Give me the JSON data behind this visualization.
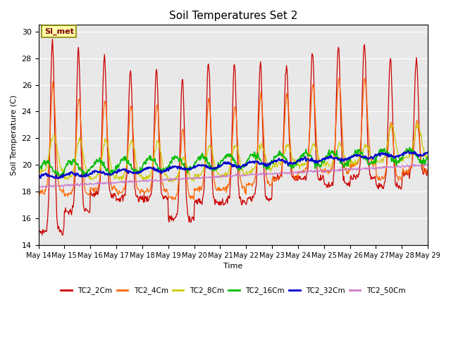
{
  "title": "Soil Temperatures Set 2",
  "xlabel": "Time",
  "ylabel": "Soil Temperature (C)",
  "ylim": [
    14,
    30.5
  ],
  "yticks": [
    14,
    16,
    18,
    20,
    22,
    24,
    26,
    28,
    30
  ],
  "bg_color": "#e8e8e8",
  "series_colors": {
    "TC2_2Cm": "#cc0000",
    "TC2_4Cm": "#ff6600",
    "TC2_8Cm": "#cccc00",
    "TC2_16Cm": "#00bb00",
    "TC2_32Cm": "#0000cc",
    "TC2_50Cm": "#cc77cc"
  },
  "legend_label": "SI_met",
  "x_start": 14,
  "x_end": 29,
  "x_ticks": [
    14,
    15,
    16,
    17,
    18,
    19,
    20,
    21,
    22,
    23,
    24,
    25,
    26,
    27,
    28,
    29
  ],
  "x_tick_labels": [
    "May 14",
    "May 15",
    "May 16",
    "May 17",
    "May 18",
    "May 19",
    "May 20",
    "May 21",
    "May 22",
    "May 23",
    "May 24",
    "May 25",
    "May 26",
    "May 27",
    "May 28",
    "May 29"
  ],
  "day_max_2cm": [
    29.5,
    28.6,
    28.2,
    27.2,
    27.2,
    26.5,
    27.7,
    27.6,
    27.6,
    27.5,
    28.5,
    29.0,
    29.3,
    28.0,
    28.0
  ],
  "day_min_2cm": [
    15.0,
    16.5,
    17.8,
    17.5,
    17.5,
    16.0,
    17.2,
    17.2,
    17.5,
    19.0,
    19.0,
    18.5,
    19.0,
    18.4,
    19.4
  ],
  "day_max_4cm": [
    26.0,
    25.0,
    24.8,
    24.5,
    24.5,
    22.5,
    24.8,
    24.5,
    25.2,
    25.2,
    26.0,
    26.5,
    26.5,
    23.2,
    23.2
  ],
  "day_min_4cm": [
    18.0,
    17.8,
    18.2,
    18.0,
    18.0,
    17.5,
    18.2,
    18.2,
    18.5,
    19.0,
    19.5,
    19.5,
    20.0,
    19.0,
    19.5
  ],
  "day_max_8cm": [
    22.2,
    22.0,
    21.8,
    21.8,
    21.8,
    20.5,
    21.5,
    21.5,
    21.5,
    21.5,
    21.5,
    21.5,
    21.5,
    23.0,
    23.0
  ],
  "day_min_8cm": [
    19.5,
    19.0,
    19.0,
    19.0,
    19.0,
    18.8,
    19.2,
    19.2,
    19.5,
    20.0,
    20.0,
    20.0,
    20.2,
    20.2,
    20.5
  ]
}
